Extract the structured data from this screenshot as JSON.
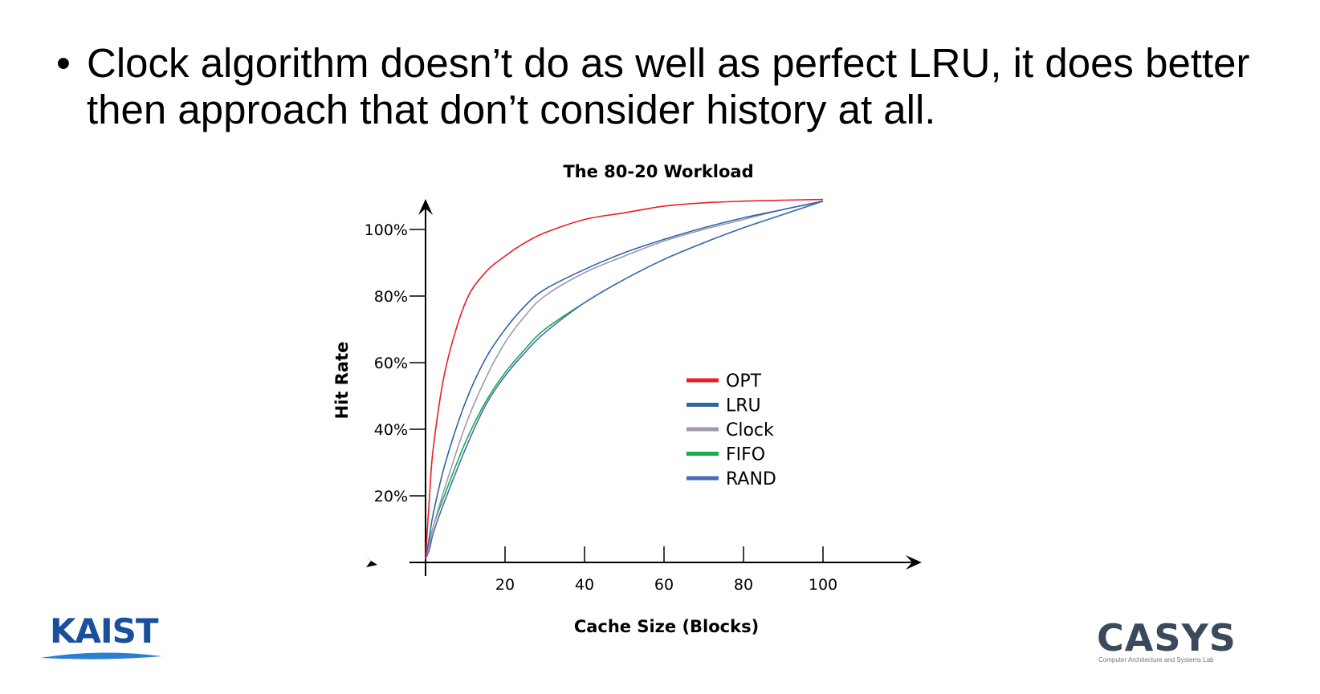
{
  "slide": {
    "bullet_symbol": "•",
    "bullet_text": "Clock algorithm doesn’t do as well as perfect LRU, it does better then approach that don’t consider history at all."
  },
  "chart_data": {
    "type": "line",
    "title": "The 80-20 Workload",
    "xlabel": "Cache Size (Blocks)",
    "ylabel": "Hit Rate",
    "xlim": [
      0,
      120
    ],
    "ylim": [
      0,
      110
    ],
    "x_ticks": [
      20,
      40,
      60,
      80,
      100
    ],
    "x_tick_labels": [
      "20",
      "40",
      "60",
      "80",
      "100"
    ],
    "y_ticks": [
      20,
      40,
      60,
      80,
      100
    ],
    "y_tick_labels": [
      "20%",
      "40%",
      "60%",
      "80%",
      "100%"
    ],
    "grid": false,
    "legend_position": "center-right",
    "x": [
      0,
      1,
      2,
      5,
      10,
      15,
      20,
      25,
      30,
      40,
      50,
      60,
      70,
      80,
      90,
      100
    ],
    "series": [
      {
        "name": "OPT",
        "color": "#ee1c25",
        "values": [
          1,
          20,
          35,
          58,
          78,
          87,
          92,
          96,
          99,
          103,
          105,
          107,
          108,
          108.5,
          108.8,
          109
        ]
      },
      {
        "name": "LRU",
        "color": "#2e64a8",
        "values": [
          1,
          8,
          15,
          30,
          48,
          61,
          70,
          77,
          82,
          88,
          93,
          97,
          100.5,
          103.5,
          106,
          108.5
        ]
      },
      {
        "name": "Clock",
        "color": "#a39aa8",
        "values": [
          1,
          6,
          11,
          23,
          41,
          55,
          66,
          74,
          80,
          87,
          92,
          96.5,
          100,
          103,
          106,
          108.5
        ]
      },
      {
        "name": "FIFO",
        "color": "#12b04a",
        "values": [
          1,
          6,
          11,
          21,
          36,
          48,
          57,
          64,
          70,
          78,
          85,
          91,
          96,
          100.5,
          104.5,
          108.5
        ]
      },
      {
        "name": "RAND",
        "color": "#4a6ab8",
        "values": [
          1,
          4,
          9,
          19,
          34,
          47,
          56,
          63,
          69,
          78,
          85,
          91,
          96,
          100.5,
          104.5,
          108.5
        ]
      }
    ]
  },
  "logos": {
    "left": {
      "name": "KAIST",
      "color": "#1a4f9c"
    },
    "right": {
      "name": "CASYS",
      "subtitle": "Computer Architecture and Systems Lab",
      "color": "#3a4a5c"
    }
  }
}
